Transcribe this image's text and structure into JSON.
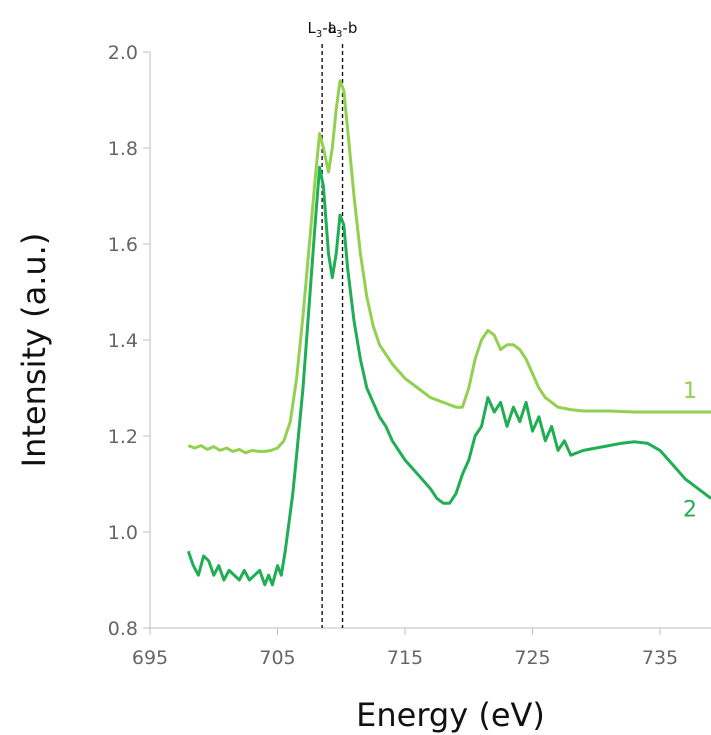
{
  "chart_data": {
    "type": "line",
    "title": "",
    "xlabel": "Energy (eV)",
    "ylabel": "Intensity (a.u.)",
    "xlim": [
      695,
      739
    ],
    "ylim": [
      0.8,
      2.0
    ],
    "x_ticks": [
      695,
      705,
      715,
      725,
      735
    ],
    "x_tick_labels": [
      "695",
      "705",
      "715",
      "725",
      "735"
    ],
    "y_ticks": [
      0.8,
      1.0,
      1.2,
      1.4,
      1.6,
      1.8,
      2.0
    ],
    "y_tick_labels": [
      "0.8",
      "1.0",
      "1.2",
      "1.4",
      "1.6",
      "1.8",
      "2.0"
    ],
    "grid": false,
    "legend": "none",
    "annotations": [
      {
        "id": "marker-l3a",
        "x": 708.5,
        "main": "L",
        "sub": "3",
        "suffix": "-a"
      },
      {
        "id": "marker-l3b",
        "x": 710.1,
        "main": "L",
        "sub": "3",
        "suffix": "-b"
      }
    ],
    "series": [
      {
        "label": "1",
        "color": "#92d050",
        "points": [
          [
            698,
            1.18
          ],
          [
            698.5,
            1.175
          ],
          [
            699,
            1.18
          ],
          [
            699.5,
            1.172
          ],
          [
            700,
            1.178
          ],
          [
            700.5,
            1.17
          ],
          [
            701,
            1.175
          ],
          [
            701.5,
            1.168
          ],
          [
            702,
            1.172
          ],
          [
            702.5,
            1.165
          ],
          [
            703,
            1.17
          ],
          [
            703.5,
            1.168
          ],
          [
            704,
            1.168
          ],
          [
            704.5,
            1.17
          ],
          [
            705,
            1.175
          ],
          [
            705.5,
            1.19
          ],
          [
            706,
            1.23
          ],
          [
            706.5,
            1.32
          ],
          [
            707,
            1.45
          ],
          [
            707.5,
            1.6
          ],
          [
            708,
            1.75
          ],
          [
            708.3,
            1.83
          ],
          [
            708.6,
            1.8
          ],
          [
            709,
            1.75
          ],
          [
            709.3,
            1.8
          ],
          [
            709.6,
            1.88
          ],
          [
            709.9,
            1.94
          ],
          [
            710.2,
            1.92
          ],
          [
            710.5,
            1.84
          ],
          [
            711,
            1.7
          ],
          [
            711.5,
            1.58
          ],
          [
            712,
            1.49
          ],
          [
            712.5,
            1.43
          ],
          [
            713,
            1.39
          ],
          [
            714,
            1.35
          ],
          [
            715,
            1.32
          ],
          [
            716,
            1.3
          ],
          [
            717,
            1.28
          ],
          [
            718,
            1.27
          ],
          [
            719,
            1.26
          ],
          [
            719.5,
            1.26
          ],
          [
            720,
            1.3
          ],
          [
            720.5,
            1.36
          ],
          [
            721,
            1.4
          ],
          [
            721.5,
            1.42
          ],
          [
            722,
            1.41
          ],
          [
            722.5,
            1.38
          ],
          [
            723,
            1.39
          ],
          [
            723.5,
            1.39
          ],
          [
            724,
            1.38
          ],
          [
            724.5,
            1.36
          ],
          [
            725,
            1.33
          ],
          [
            725.5,
            1.3
          ],
          [
            726,
            1.28
          ],
          [
            727,
            1.26
          ],
          [
            728,
            1.255
          ],
          [
            729,
            1.252
          ],
          [
            731,
            1.252
          ],
          [
            733,
            1.25
          ],
          [
            735,
            1.25
          ],
          [
            737,
            1.25
          ],
          [
            739,
            1.25
          ]
        ]
      },
      {
        "label": "2",
        "color": "#1fae54",
        "points": [
          [
            698,
            0.96
          ],
          [
            698.4,
            0.93
          ],
          [
            698.8,
            0.91
          ],
          [
            699.2,
            0.95
          ],
          [
            699.6,
            0.94
          ],
          [
            700,
            0.91
          ],
          [
            700.4,
            0.93
          ],
          [
            700.8,
            0.9
          ],
          [
            701.2,
            0.92
          ],
          [
            701.6,
            0.91
          ],
          [
            702,
            0.9
          ],
          [
            702.4,
            0.92
          ],
          [
            702.8,
            0.9
          ],
          [
            703.2,
            0.91
          ],
          [
            703.6,
            0.92
          ],
          [
            704,
            0.89
          ],
          [
            704.3,
            0.91
          ],
          [
            704.6,
            0.89
          ],
          [
            705,
            0.93
          ],
          [
            705.3,
            0.91
          ],
          [
            705.6,
            0.96
          ],
          [
            705.9,
            1.02
          ],
          [
            706.2,
            1.08
          ],
          [
            706.5,
            1.16
          ],
          [
            707,
            1.3
          ],
          [
            707.5,
            1.48
          ],
          [
            708,
            1.66
          ],
          [
            708.3,
            1.76
          ],
          [
            708.6,
            1.72
          ],
          [
            709,
            1.58
          ],
          [
            709.3,
            1.53
          ],
          [
            709.6,
            1.58
          ],
          [
            709.9,
            1.66
          ],
          [
            710.2,
            1.64
          ],
          [
            710.5,
            1.55
          ],
          [
            711,
            1.44
          ],
          [
            711.5,
            1.36
          ],
          [
            712,
            1.3
          ],
          [
            712.5,
            1.27
          ],
          [
            713,
            1.24
          ],
          [
            713.5,
            1.22
          ],
          [
            714,
            1.19
          ],
          [
            715,
            1.15
          ],
          [
            716,
            1.12
          ],
          [
            717,
            1.09
          ],
          [
            717.5,
            1.07
          ],
          [
            718,
            1.06
          ],
          [
            718.5,
            1.06
          ],
          [
            719,
            1.08
          ],
          [
            719.5,
            1.12
          ],
          [
            720,
            1.15
          ],
          [
            720.5,
            1.2
          ],
          [
            721,
            1.22
          ],
          [
            721.5,
            1.28
          ],
          [
            722,
            1.25
          ],
          [
            722.5,
            1.27
          ],
          [
            723,
            1.22
          ],
          [
            723.5,
            1.26
          ],
          [
            724,
            1.23
          ],
          [
            724.5,
            1.27
          ],
          [
            725,
            1.21
          ],
          [
            725.5,
            1.24
          ],
          [
            726,
            1.19
          ],
          [
            726.5,
            1.22
          ],
          [
            727,
            1.17
          ],
          [
            727.5,
            1.19
          ],
          [
            728,
            1.16
          ],
          [
            729,
            1.17
          ],
          [
            730,
            1.175
          ],
          [
            731,
            1.18
          ],
          [
            732,
            1.185
          ],
          [
            733,
            1.188
          ],
          [
            734,
            1.185
          ],
          [
            735,
            1.17
          ],
          [
            736,
            1.14
          ],
          [
            737,
            1.11
          ],
          [
            738,
            1.09
          ],
          [
            739,
            1.07
          ]
        ]
      }
    ]
  }
}
